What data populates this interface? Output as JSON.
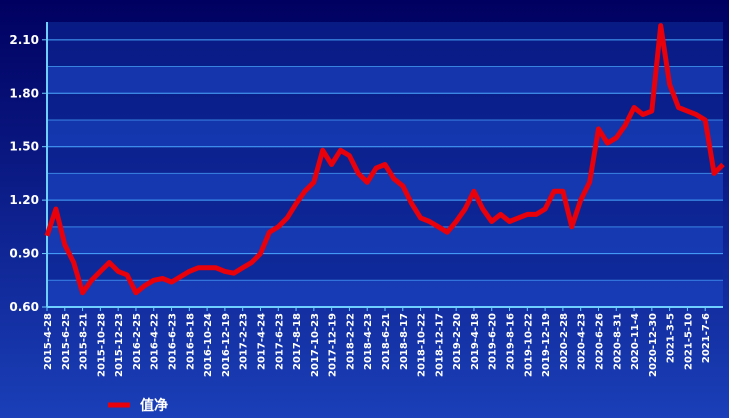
{
  "chart_data": {
    "type": "line",
    "categories": [
      "2015-4-28",
      null,
      "2015-6-25",
      null,
      "2015-8-21",
      null,
      "2015-10-28",
      null,
      "2015-12-23",
      null,
      "2016-2-25",
      null,
      "2016-4-22",
      null,
      "2016-6-23",
      null,
      "2016-8-18",
      null,
      "2016-10-24",
      null,
      "2016-12-19",
      null,
      "2017-2-23",
      null,
      "2017-4-24",
      null,
      "2017-6-23",
      null,
      "2017-8-18",
      null,
      "2017-10-23",
      null,
      "2017-12-19",
      null,
      "2018-2-22",
      null,
      "2018-4-23",
      null,
      "2018-6-21",
      null,
      "2018-8-17",
      null,
      "2018-10-22",
      null,
      "2018-12-17",
      null,
      "2019-2-20",
      null,
      "2019-4-18",
      null,
      "2019-6-20",
      null,
      "2019-8-16",
      null,
      "2019-10-22",
      null,
      "2019-12-19",
      null,
      "2020-2-28",
      null,
      "2020-4-23",
      null,
      "2020-6-26",
      null,
      "2020-8-31",
      null,
      "2020-11-4",
      null,
      "2020-12-30",
      null,
      "2021-3-5",
      null,
      "2021-5-10",
      null,
      "2021-7-6",
      null,
      null
    ],
    "series": [
      {
        "name": "值净",
        "color": "#e8000b",
        "values": [
          1.0,
          1.15,
          0.95,
          0.85,
          0.68,
          0.75,
          0.8,
          0.85,
          0.8,
          0.78,
          0.68,
          0.72,
          0.75,
          0.76,
          0.74,
          0.77,
          0.8,
          0.82,
          0.82,
          0.82,
          0.8,
          0.79,
          0.82,
          0.85,
          0.9,
          1.02,
          1.05,
          1.1,
          1.18,
          1.25,
          1.3,
          1.48,
          1.4,
          1.48,
          1.45,
          1.35,
          1.3,
          1.38,
          1.4,
          1.32,
          1.28,
          1.18,
          1.1,
          1.08,
          1.05,
          1.02,
          1.08,
          1.15,
          1.25,
          1.15,
          1.08,
          1.12,
          1.08,
          1.1,
          1.12,
          1.12,
          1.15,
          1.25,
          1.25,
          1.05,
          1.2,
          1.3,
          1.6,
          1.52,
          1.55,
          1.62,
          1.72,
          1.68,
          1.7,
          2.18,
          1.85,
          1.72,
          1.7,
          1.68,
          1.65,
          1.35,
          1.4
        ]
      }
    ],
    "ylim": [
      0.6,
      2.2
    ],
    "yticks": [
      {
        "value": 0.6,
        "label": "0.60"
      },
      {
        "value": 0.9,
        "label": "0.90"
      },
      {
        "value": 1.2,
        "label": "1.20"
      },
      {
        "value": 1.5,
        "label": "1.50"
      },
      {
        "value": 1.8,
        "label": "1.80"
      },
      {
        "value": 2.1,
        "label": "2.10"
      }
    ],
    "grid": true,
    "legend": "bottom-left"
  }
}
